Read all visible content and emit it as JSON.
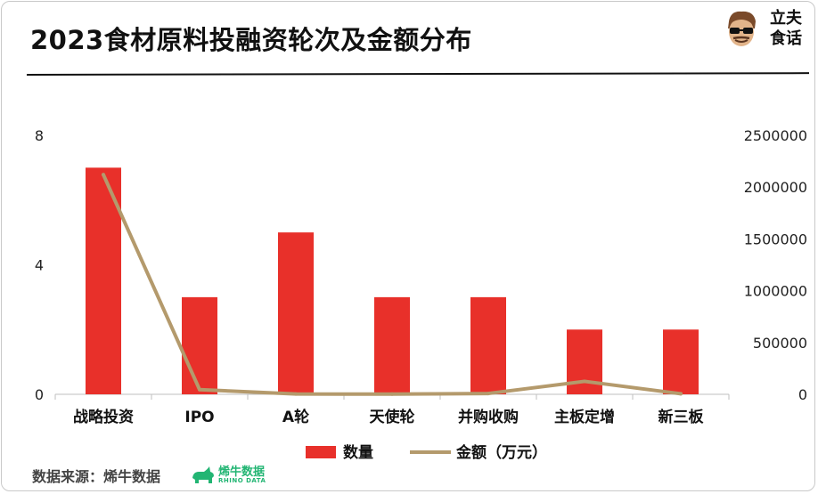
{
  "title": "2023食材原料投融资轮次及金额分布",
  "logo": {
    "line1": "立夫",
    "line2": "食话",
    "icon": "face-with-sunglasses-icon"
  },
  "source": {
    "label": "数据来源：烯牛数据",
    "brand_cn": "烯牛数据",
    "brand_en": "RHINO DATA",
    "brand_icon": "rhino-icon"
  },
  "colors": {
    "bar": "#e8302a",
    "line": "#b49a6c",
    "brand_green": "#22b573"
  },
  "chart_data": {
    "type": "bar",
    "categories": [
      "战略投资",
      "IPO",
      "A轮",
      "天使轮",
      "并购收购",
      "主板定增",
      "新三板"
    ],
    "series": [
      {
        "name": "数量",
        "type": "bar",
        "axis": "left",
        "values": [
          7,
          3,
          5,
          3,
          3,
          2,
          2
        ]
      },
      {
        "name": "金额（万元）",
        "type": "line",
        "axis": "right",
        "values": [
          2120000,
          45000,
          3000,
          2000,
          8000,
          125000,
          5000
        ]
      }
    ],
    "y_left": {
      "range": [
        0,
        8
      ],
      "ticks": [
        "0",
        "4",
        "8"
      ]
    },
    "y_right": {
      "range": [
        0,
        2500000
      ],
      "ticks": [
        "0",
        "500000",
        "1000000",
        "1500000",
        "2000000",
        "2500000"
      ]
    },
    "legend": "bottom",
    "grid": false
  }
}
